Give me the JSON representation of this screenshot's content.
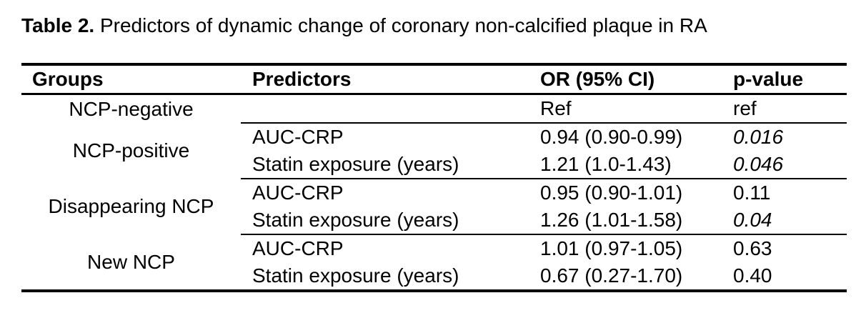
{
  "page": {
    "background_color": "#ffffff",
    "text_color": "#000000",
    "rule_color": "#000000"
  },
  "title": {
    "label": "Table 2.",
    "text": "Predictors of dynamic change of coronary non-calcified plaque in RA"
  },
  "table": {
    "headers": {
      "groups": "Groups",
      "predictors": "Predictors",
      "or_ci": "OR (95% CI)",
      "p_value": "p-value"
    },
    "sections": [
      {
        "group": "NCP-negative",
        "rows": [
          {
            "predictor": "",
            "or_ci": "Ref",
            "p_value": "ref",
            "p_italic": false
          }
        ]
      },
      {
        "group": "NCP-positive",
        "rows": [
          {
            "predictor": "AUC-CRP",
            "or_ci": "0.94 (0.90-0.99)",
            "p_value": "0.016",
            "p_italic": true
          },
          {
            "predictor": "Statin exposure (years)",
            "or_ci": "1.21 (1.0-1.43)",
            "p_value": "0.046",
            "p_italic": true
          }
        ]
      },
      {
        "group": "Disappearing NCP",
        "rows": [
          {
            "predictor": "AUC-CRP",
            "or_ci": "0.95 (0.90-1.01)",
            "p_value": "0.11",
            "p_italic": false
          },
          {
            "predictor": "Statin exposure (years)",
            "or_ci": "1.26 (1.01-1.58)",
            "p_value": "0.04",
            "p_italic": true
          }
        ]
      },
      {
        "group": "New NCP",
        "rows": [
          {
            "predictor": "AUC-CRP",
            "or_ci": "1.01 (0.97-1.05)",
            "p_value": "0.63",
            "p_italic": false
          },
          {
            "predictor": "Statin exposure (years)",
            "or_ci": "0.67 (0.27-1.70)",
            "p_value": "0.40",
            "p_italic": false
          }
        ]
      }
    ]
  }
}
